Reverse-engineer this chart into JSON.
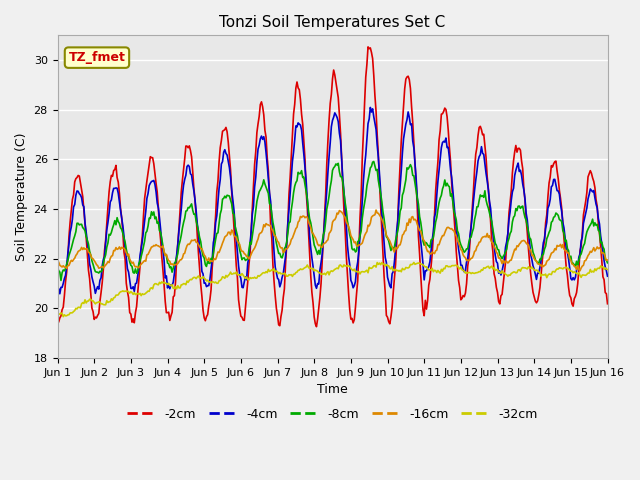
{
  "title": "Tonzi Soil Temperatures Set C",
  "xlabel": "Time",
  "ylabel": "Soil Temperature (C)",
  "ylim": [
    18,
    31
  ],
  "yticks": [
    18,
    20,
    22,
    24,
    26,
    28,
    30
  ],
  "annotation": "TZ_fmet",
  "bg_color": "#e8e8e8",
  "legend_labels": [
    "-2cm",
    "-4cm",
    "-8cm",
    "-16cm",
    "-32cm"
  ],
  "line_colors": [
    "#dd0000",
    "#0000cc",
    "#00aa00",
    "#dd8800",
    "#cccc00"
  ],
  "xtick_labels": [
    "Jun 1",
    "Jun 2",
    "Jun 3",
    "Jun 4",
    "Jun 5",
    "Jun 6",
    "Jun 7",
    "Jun 8",
    "Jun 9",
    "Jun 10",
    "Jun 11",
    "Jun 12",
    "Jun 13",
    "Jun 14",
    "Jun 15",
    "Jun 16"
  ],
  "num_points": 481
}
